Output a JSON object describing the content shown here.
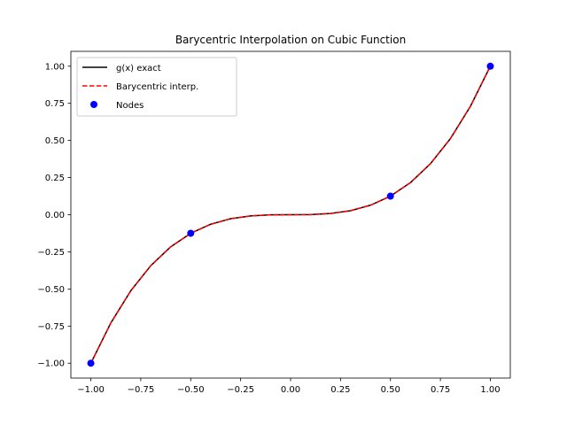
{
  "chart_data": {
    "type": "line",
    "title": "Barycentric Interpolation on Cubic Function",
    "xlabel": "",
    "ylabel": "",
    "xlim": [
      -1.1,
      1.1
    ],
    "ylim": [
      -1.1,
      1.1
    ],
    "xticks": [
      -1.0,
      -0.75,
      -0.5,
      -0.25,
      0.0,
      0.25,
      0.5,
      0.75,
      1.0
    ],
    "xtick_labels": [
      "−1.00",
      "−0.75",
      "−0.50",
      "−0.25",
      "0.00",
      "0.25",
      "0.50",
      "0.75",
      "1.00"
    ],
    "yticks": [
      -1.0,
      -0.75,
      -0.5,
      -0.25,
      0.0,
      0.25,
      0.5,
      0.75,
      1.0
    ],
    "ytick_labels": [
      "−1.00",
      "−0.75",
      "−0.50",
      "−0.25",
      "0.00",
      "0.25",
      "0.50",
      "0.75",
      "1.00"
    ],
    "grid": false,
    "legend_position": "top-left",
    "series": [
      {
        "name": "g(x) exact",
        "style": "solid",
        "color": "#000000",
        "x": [
          -1.0,
          -0.9,
          -0.8,
          -0.7,
          -0.6,
          -0.5,
          -0.4,
          -0.3,
          -0.2,
          -0.1,
          0.0,
          0.1,
          0.2,
          0.3,
          0.4,
          0.5,
          0.6,
          0.7,
          0.8,
          0.9,
          1.0
        ],
        "y": [
          -1.0,
          -0.729,
          -0.512,
          -0.343,
          -0.216,
          -0.125,
          -0.064,
          -0.027,
          -0.008,
          -0.001,
          0.0,
          0.001,
          0.008,
          0.027,
          0.064,
          0.125,
          0.216,
          0.343,
          0.512,
          0.729,
          1.0
        ]
      },
      {
        "name": "Barycentric interp.",
        "style": "dashed",
        "color": "#ff0000",
        "x": [
          -1.0,
          -0.9,
          -0.8,
          -0.7,
          -0.6,
          -0.5,
          -0.4,
          -0.3,
          -0.2,
          -0.1,
          0.0,
          0.1,
          0.2,
          0.3,
          0.4,
          0.5,
          0.6,
          0.7,
          0.8,
          0.9,
          1.0
        ],
        "y": [
          -1.0,
          -0.729,
          -0.512,
          -0.343,
          -0.216,
          -0.125,
          -0.064,
          -0.027,
          -0.008,
          -0.001,
          0.0,
          0.001,
          0.008,
          0.027,
          0.064,
          0.125,
          0.216,
          0.343,
          0.512,
          0.729,
          1.0
        ]
      },
      {
        "name": "Nodes",
        "style": "scatter",
        "color": "#0000ff",
        "x": [
          -1.0,
          -0.5,
          0.5,
          1.0
        ],
        "y": [
          -1.0,
          -0.125,
          0.125,
          1.0
        ]
      }
    ]
  }
}
